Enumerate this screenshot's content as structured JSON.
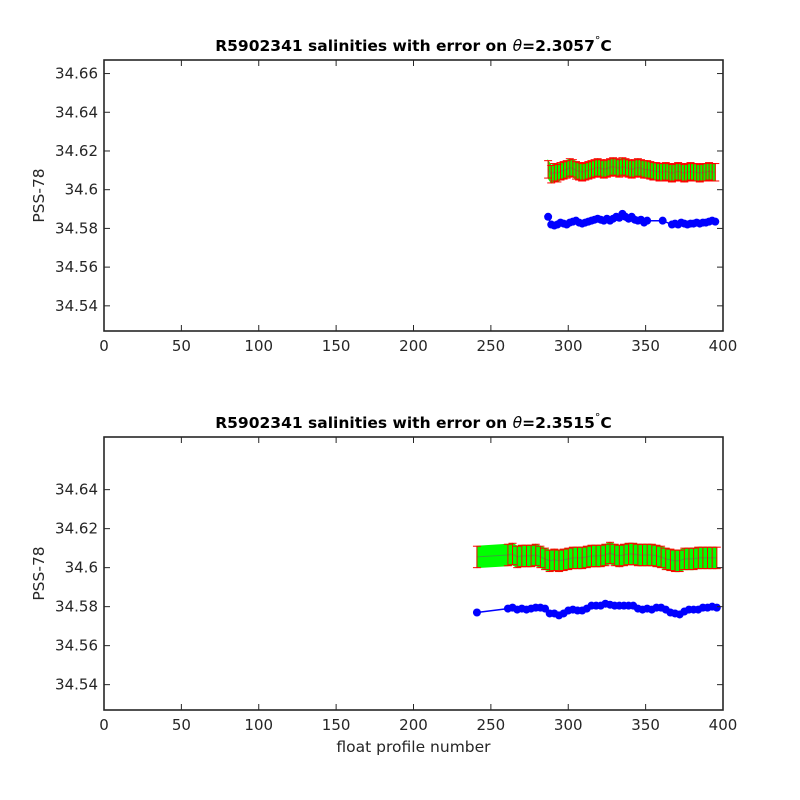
{
  "chart_data": [
    {
      "type": "line",
      "title_prefix": "R5902341 salinities with error on ",
      "title_theta": "θ",
      "title_value": "=2.3057",
      "title_unit": "C",
      "ylabel": "PSS-78",
      "xlabel": "",
      "xlim": [
        0,
        400
      ],
      "ylim": [
        34.527,
        34.667
      ],
      "x_ticks": [
        "0",
        "50",
        "100",
        "150",
        "200",
        "250",
        "300",
        "350",
        "400"
      ],
      "y_ticks": [
        "34.54",
        "34.56",
        "34.58",
        "34.6",
        "34.62",
        "34.64",
        "34.66"
      ],
      "grid": false,
      "colors": {
        "calibrated": "#00ff00",
        "errorbar": "#ff0000",
        "raw": "#0000ff"
      },
      "series": [
        {
          "role": "calibrated-with-error",
          "x": [
            287,
            289,
            291,
            293,
            295,
            297,
            299,
            301,
            303,
            305,
            307,
            309,
            311,
            313,
            315,
            317,
            319,
            321,
            323,
            325,
            327,
            329,
            331,
            333,
            335,
            337,
            339,
            341,
            343,
            345,
            347,
            349,
            351,
            353,
            355,
            357,
            359,
            361,
            363,
            365,
            367,
            369,
            371,
            373,
            375,
            377,
            379,
            381,
            383,
            385,
            387,
            389,
            391,
            393,
            395
          ],
          "values": [
            34.6105,
            34.608,
            34.609,
            34.6085,
            34.6095,
            34.61,
            34.6105,
            34.6115,
            34.611,
            34.61,
            34.6095,
            34.609,
            34.6095,
            34.61,
            34.6105,
            34.611,
            34.6115,
            34.611,
            34.6105,
            34.611,
            34.6115,
            34.612,
            34.6115,
            34.611,
            34.612,
            34.6115,
            34.611,
            34.6105,
            34.611,
            34.6115,
            34.611,
            34.6105,
            34.6105,
            34.61,
            34.6095,
            34.6095,
            34.609,
            34.609,
            34.6095,
            34.609,
            34.6085,
            34.609,
            34.6095,
            34.609,
            34.6085,
            34.609,
            34.6095,
            34.609,
            34.609,
            34.6085,
            34.609,
            34.609,
            34.6095,
            34.609,
            34.609
          ],
          "error": 0.0045
        },
        {
          "role": "raw",
          "x": [
            287,
            289,
            291,
            293,
            295,
            297,
            299,
            301,
            303,
            305,
            307,
            309,
            311,
            313,
            315,
            317,
            319,
            321,
            323,
            325,
            327,
            329,
            331,
            333,
            335,
            337,
            339,
            341,
            343,
            345,
            347,
            349,
            351,
            361,
            367,
            369,
            371,
            373,
            375,
            377,
            379,
            381,
            383,
            385,
            387,
            389,
            391,
            393,
            395
          ],
          "values": [
            34.586,
            34.582,
            34.5815,
            34.582,
            34.583,
            34.5825,
            34.582,
            34.583,
            34.5835,
            34.584,
            34.583,
            34.5825,
            34.583,
            34.5835,
            34.584,
            34.5845,
            34.585,
            34.5845,
            34.584,
            34.585,
            34.584,
            34.585,
            34.586,
            34.5855,
            34.5875,
            34.586,
            34.585,
            34.586,
            34.5845,
            34.584,
            34.5845,
            34.583,
            34.584,
            34.584,
            34.582,
            34.5825,
            34.582,
            34.583,
            34.5825,
            34.582,
            34.5825,
            34.5825,
            34.583,
            34.5825,
            34.583,
            34.583,
            34.5835,
            34.584,
            34.5835
          ]
        }
      ]
    },
    {
      "type": "line",
      "title_prefix": "R5902341 salinities with error on ",
      "title_theta": "θ",
      "title_value": "=2.3515",
      "title_unit": "C",
      "ylabel": "PSS-78",
      "xlabel": "float profile number",
      "xlim": [
        0,
        400
      ],
      "ylim": [
        34.527,
        34.667
      ],
      "x_ticks": [
        "0",
        "50",
        "100",
        "150",
        "200",
        "250",
        "300",
        "350",
        "400"
      ],
      "y_ticks": [
        "34.54",
        "34.56",
        "34.58",
        "34.6",
        "34.62",
        "34.64"
      ],
      "grid": false,
      "colors": {
        "calibrated": "#00ff00",
        "errorbar": "#ff0000",
        "raw": "#0000ff"
      },
      "series": [
        {
          "role": "calibrated-with-error",
          "x": [
            241,
            261,
            264,
            267,
            270,
            273,
            276,
            279,
            282,
            285,
            288,
            291,
            294,
            297,
            300,
            303,
            306,
            309,
            312,
            315,
            318,
            321,
            324,
            327,
            330,
            333,
            336,
            339,
            342,
            345,
            348,
            351,
            354,
            357,
            360,
            363,
            366,
            369,
            372,
            375,
            378,
            381,
            384,
            387,
            390,
            393,
            396
          ],
          "values": [
            34.6055,
            34.6065,
            34.607,
            34.6055,
            34.606,
            34.606,
            34.606,
            34.6065,
            34.6055,
            34.6045,
            34.6035,
            34.604,
            34.6035,
            34.604,
            34.6045,
            34.605,
            34.605,
            34.605,
            34.6055,
            34.606,
            34.606,
            34.606,
            34.6065,
            34.6075,
            34.6065,
            34.606,
            34.6065,
            34.607,
            34.607,
            34.6065,
            34.6065,
            34.6065,
            34.6065,
            34.606,
            34.6055,
            34.6045,
            34.604,
            34.6035,
            34.6035,
            34.6045,
            34.6045,
            34.6045,
            34.605,
            34.605,
            34.605,
            34.605,
            34.605
          ],
          "error": 0.0055
        },
        {
          "role": "raw",
          "x": [
            241,
            261,
            264,
            267,
            270,
            273,
            276,
            279,
            282,
            285,
            288,
            291,
            294,
            297,
            300,
            303,
            306,
            309,
            312,
            315,
            318,
            321,
            324,
            327,
            330,
            333,
            336,
            339,
            342,
            345,
            348,
            351,
            354,
            357,
            360,
            363,
            366,
            369,
            372,
            375,
            378,
            381,
            384,
            387,
            390,
            393,
            396
          ],
          "values": [
            34.577,
            34.579,
            34.5795,
            34.5785,
            34.579,
            34.5785,
            34.579,
            34.5795,
            34.5795,
            34.579,
            34.5765,
            34.5765,
            34.5755,
            34.5765,
            34.578,
            34.5785,
            34.578,
            34.578,
            34.579,
            34.5805,
            34.5805,
            34.5805,
            34.5815,
            34.581,
            34.5805,
            34.5805,
            34.5805,
            34.5805,
            34.5805,
            34.579,
            34.5785,
            34.579,
            34.5785,
            34.5795,
            34.5795,
            34.5785,
            34.577,
            34.5765,
            34.576,
            34.5775,
            34.5785,
            34.5785,
            34.5785,
            34.5795,
            34.5795,
            34.58,
            34.5795
          ]
        }
      ]
    }
  ]
}
